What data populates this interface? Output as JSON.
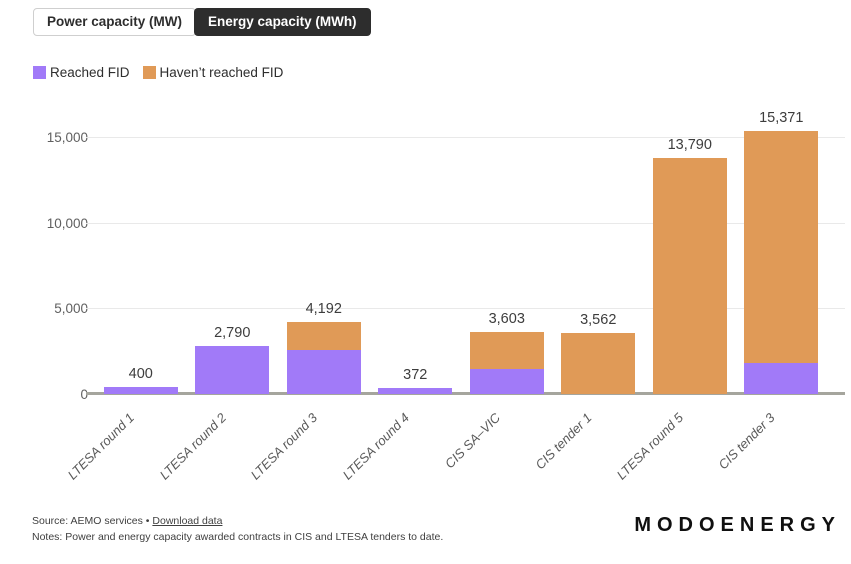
{
  "tabs": [
    {
      "label": "Power capacity (MW)",
      "active": false
    },
    {
      "label": "Energy capacity (MWh)",
      "active": true
    }
  ],
  "legend": [
    {
      "label": "Reached FID",
      "color": "#a17af8"
    },
    {
      "label": "Haven’t reached FID",
      "color": "#e09a57"
    }
  ],
  "chart_data": {
    "type": "bar",
    "stacked": true,
    "categories": [
      "LTESA round 1",
      "LTESA round 2",
      "LTESA round 3",
      "LTESA round 4",
      "CIS SA–VIC",
      "CIS tender 1",
      "LTESA round 5",
      "CIS tender 3"
    ],
    "series": [
      {
        "name": "Reached FID",
        "color": "#a17af8",
        "values": [
          400,
          2790,
          2590,
          372,
          1465,
          0,
          0,
          1820
        ]
      },
      {
        "name": "Haven’t reached FID",
        "color": "#e09a57",
        "values": [
          0,
          0,
          1602,
          0,
          2138,
          3562,
          13790,
          13551
        ]
      }
    ],
    "totals": [
      400,
      2790,
      4192,
      372,
      3603,
      3562,
      13790,
      15371
    ],
    "total_labels": [
      "400",
      "2,790",
      "4,192",
      "372",
      "3,603",
      "3,562",
      "13,790",
      "15,371"
    ],
    "yticks": [
      {
        "value": 0,
        "label": "0"
      },
      {
        "value": 5000,
        "label": "5,000"
      },
      {
        "value": 10000,
        "label": "10,000"
      },
      {
        "value": 15000,
        "label": "15,000"
      }
    ],
    "ylim": [
      0,
      15750
    ],
    "grid": true,
    "legend_position": "top-left",
    "title": "",
    "xlabel": "",
    "ylabel": ""
  },
  "footer": {
    "source_prefix": "Source: AEMO services • ",
    "download_link": "Download data",
    "notes": "Notes: Power and energy capacity awarded contracts in CIS and LTESA tenders to date."
  },
  "logo": "MODOENERGY",
  "colors": {
    "purple": "#a17af8",
    "orange": "#e09a57",
    "tab_active_bg": "#2d2d2d",
    "gridline": "#e9e9e9",
    "axis_line": "#a5a59d"
  }
}
